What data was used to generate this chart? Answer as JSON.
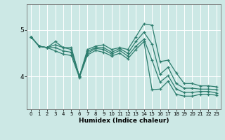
{
  "xlabel": "Humidex (Indice chaleur)",
  "ylabel": "",
  "bg_color": "#cce8e5",
  "grid_color": "#ffffff",
  "line_color": "#2d7d6e",
  "x_ticks": [
    0,
    1,
    2,
    3,
    4,
    5,
    6,
    7,
    8,
    9,
    10,
    11,
    12,
    13,
    14,
    15,
    16,
    17,
    18,
    19,
    20,
    21,
    22,
    23
  ],
  "y_ticks": [
    4,
    5
  ],
  "ylim": [
    3.3,
    5.55
  ],
  "xlim": [
    -0.5,
    23.5
  ],
  "series": [
    [
      4.85,
      4.65,
      4.62,
      4.75,
      4.62,
      4.62,
      4.0,
      4.58,
      4.65,
      4.68,
      4.58,
      4.62,
      4.58,
      4.85,
      5.13,
      5.1,
      4.32,
      4.35,
      4.08,
      3.85,
      3.85,
      3.8,
      3.8,
      3.78
    ],
    [
      4.85,
      4.65,
      4.62,
      4.68,
      4.62,
      4.58,
      4.0,
      4.54,
      4.62,
      4.62,
      4.52,
      4.6,
      4.5,
      4.75,
      4.95,
      4.7,
      4.05,
      4.2,
      3.85,
      3.75,
      3.75,
      3.73,
      3.73,
      3.72
    ],
    [
      4.85,
      4.65,
      4.62,
      4.62,
      4.55,
      4.52,
      3.99,
      4.5,
      4.6,
      4.58,
      4.48,
      4.56,
      4.44,
      4.65,
      4.8,
      4.35,
      3.88,
      4.02,
      3.73,
      3.66,
      3.66,
      3.68,
      3.68,
      3.65
    ],
    [
      4.85,
      4.65,
      4.62,
      4.55,
      4.48,
      4.45,
      3.98,
      4.46,
      4.56,
      4.52,
      4.44,
      4.5,
      4.38,
      4.58,
      4.75,
      3.72,
      3.73,
      3.9,
      3.62,
      3.58,
      3.58,
      3.62,
      3.62,
      3.6
    ]
  ]
}
